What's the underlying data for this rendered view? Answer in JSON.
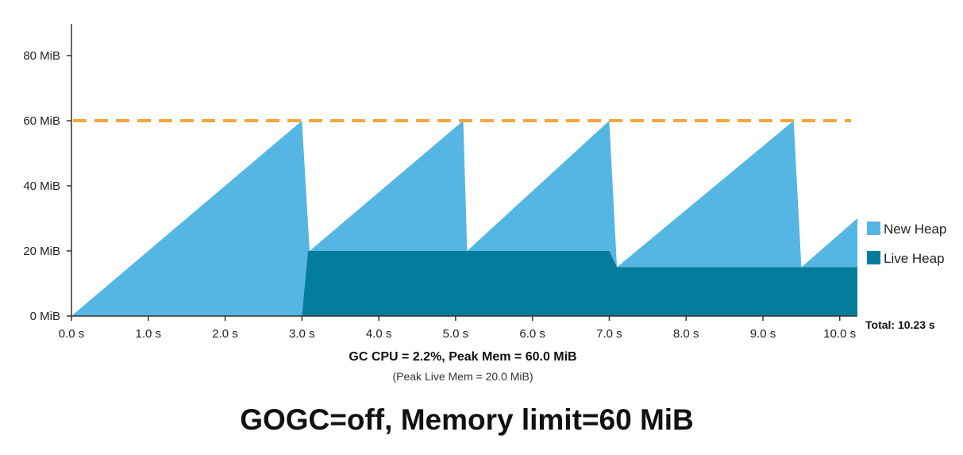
{
  "chart_data": {
    "type": "area",
    "y_ticks": [
      {
        "value": 0,
        "label": "0 MiB"
      },
      {
        "value": 20,
        "label": "20 MiB"
      },
      {
        "value": 40,
        "label": "40 MiB"
      },
      {
        "value": 60,
        "label": "60 MiB"
      },
      {
        "value": 80,
        "label": "80 MiB"
      }
    ],
    "x_ticks": [
      {
        "value": 0,
        "label": "0.0 s"
      },
      {
        "value": 1,
        "label": "1.0 s"
      },
      {
        "value": 2,
        "label": "2.0 s"
      },
      {
        "value": 3,
        "label": "3.0 s"
      },
      {
        "value": 4,
        "label": "4.0 s"
      },
      {
        "value": 5,
        "label": "5.0 s"
      },
      {
        "value": 6,
        "label": "6.0 s"
      },
      {
        "value": 7,
        "label": "7.0 s"
      },
      {
        "value": 8,
        "label": "8.0 s"
      },
      {
        "value": 9,
        "label": "9.0 s"
      },
      {
        "value": 10,
        "label": "10.0 s"
      }
    ],
    "xlim": [
      0,
      10.23
    ],
    "ylim": [
      0,
      90
    ],
    "memory_limit": {
      "value": 60,
      "color": "#f5a63c",
      "style": "dashed"
    },
    "series": [
      {
        "name": "New Heap",
        "color": "#55b6e3",
        "points": [
          [
            0,
            0
          ],
          [
            3.0,
            60
          ],
          [
            3.1,
            20
          ],
          [
            5.1,
            60
          ],
          [
            5.15,
            20
          ],
          [
            7.0,
            60
          ],
          [
            7.1,
            15
          ],
          [
            9.4,
            60
          ],
          [
            9.5,
            15
          ],
          [
            10.23,
            30
          ]
        ]
      },
      {
        "name": "Live Heap",
        "color": "#047d9c",
        "points": [
          [
            0,
            0
          ],
          [
            3.0,
            0
          ],
          [
            3.08,
            20
          ],
          [
            7.0,
            20
          ],
          [
            7.1,
            15
          ],
          [
            10.23,
            15
          ]
        ]
      }
    ],
    "legend": {
      "placement": "right"
    },
    "grid": false,
    "total_label": "Total: 10.23 s"
  },
  "summary": {
    "line": "GC CPU = 2.2%, Peak Mem = 60.0 MiB",
    "sub": "(Peak Live Mem = 20.0 MiB)"
  },
  "caption": "GOGC=off, Memory limit=60 MiB"
}
